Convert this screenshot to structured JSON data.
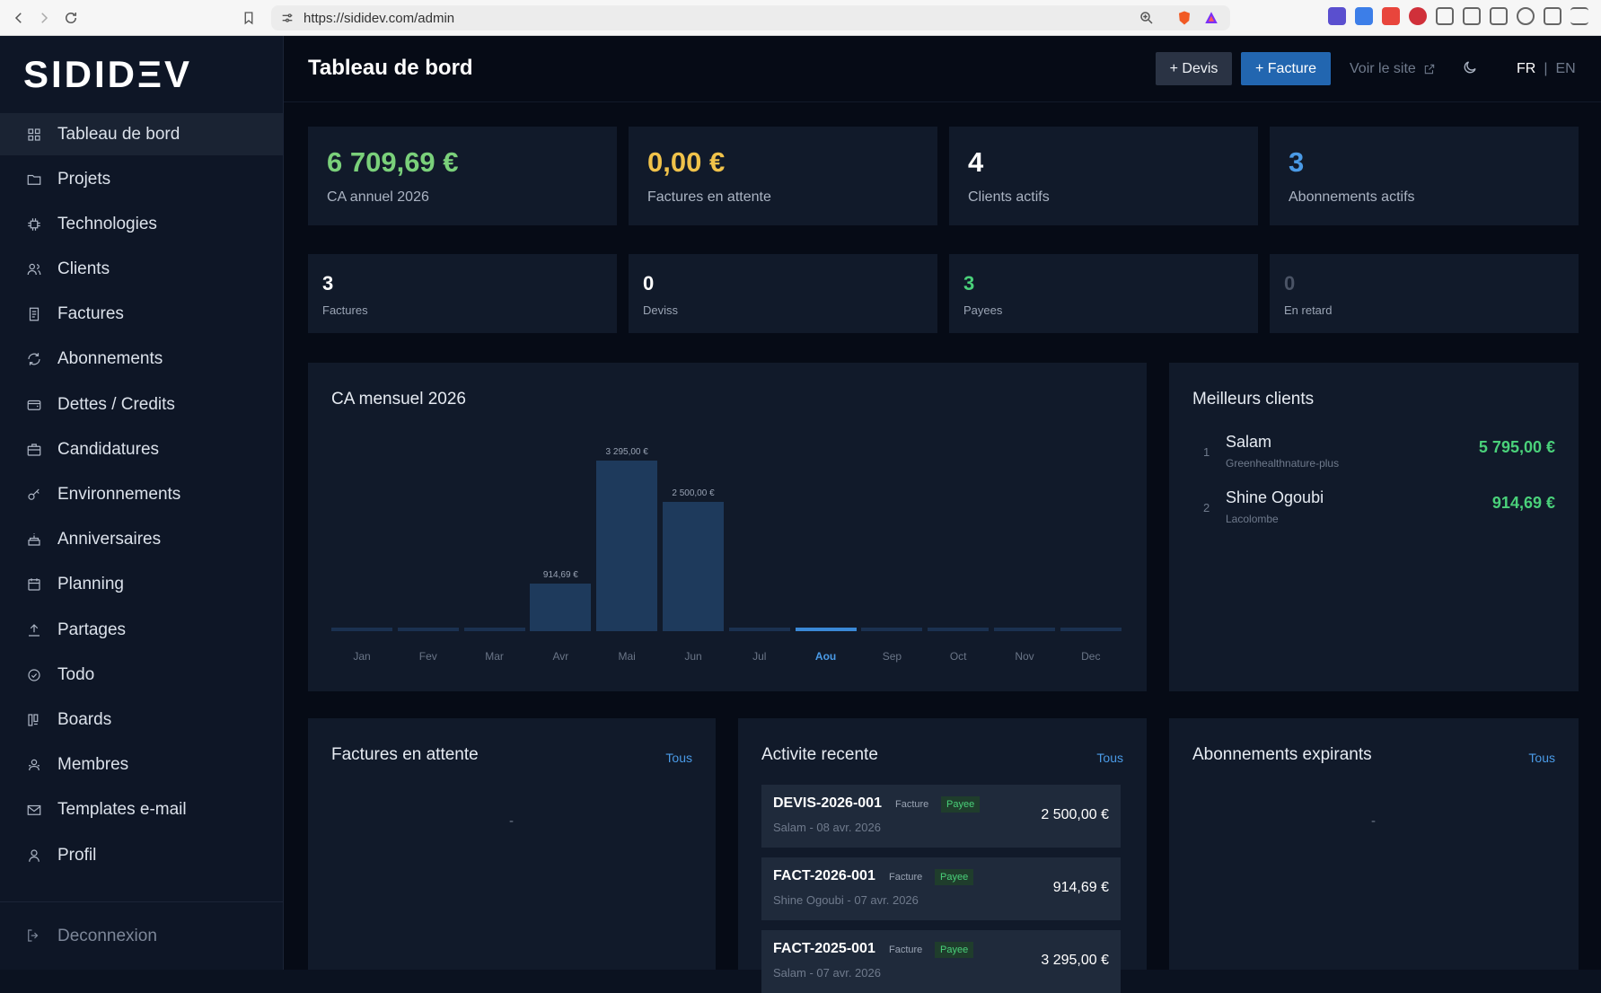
{
  "browser": {
    "url": "https://sididev.com/admin"
  },
  "sidebar": {
    "logo": "SIDIDΞV",
    "items": [
      {
        "label": "Tableau de bord",
        "icon": "dashboard-icon"
      },
      {
        "label": "Projets",
        "icon": "folder-icon"
      },
      {
        "label": "Technologies",
        "icon": "chip-icon"
      },
      {
        "label": "Clients",
        "icon": "users-icon"
      },
      {
        "label": "Factures",
        "icon": "receipt-icon"
      },
      {
        "label": "Abonnements",
        "icon": "refresh-icon"
      },
      {
        "label": "Dettes / Credits",
        "icon": "wallet-icon"
      },
      {
        "label": "Candidatures",
        "icon": "briefcase-icon"
      },
      {
        "label": "Environnements",
        "icon": "key-icon"
      },
      {
        "label": "Anniversaires",
        "icon": "cake-icon"
      },
      {
        "label": "Planning",
        "icon": "calendar-icon"
      },
      {
        "label": "Partages",
        "icon": "upload-icon"
      },
      {
        "label": "Todo",
        "icon": "check-circle-icon"
      },
      {
        "label": "Boards",
        "icon": "kanban-icon"
      },
      {
        "label": "Membres",
        "icon": "team-icon"
      },
      {
        "label": "Templates e-mail",
        "icon": "mail-icon"
      },
      {
        "label": "Profil",
        "icon": "user-icon"
      }
    ],
    "logout": "Deconnexion"
  },
  "header": {
    "title": "Tableau de bord",
    "devis_button": "+ Devis",
    "facture_button": "+ Facture",
    "voir_site": "Voir le site",
    "lang_fr": "FR",
    "lang_sep": "|",
    "lang_en": "EN"
  },
  "stats": [
    {
      "value": "6 709,69 €",
      "label": "CA annuel 2026",
      "color": "#7ad07a"
    },
    {
      "value": "0,00 €",
      "label": "Factures en attente",
      "color": "#f0c24a"
    },
    {
      "value": "4",
      "label": "Clients actifs",
      "color": "#ffffff"
    },
    {
      "value": "3",
      "label": "Abonnements actifs",
      "color": "#4a9ae6"
    }
  ],
  "small_stats": [
    {
      "value": "3",
      "label": "Factures",
      "color": "#ffffff"
    },
    {
      "value": "0",
      "label": "Deviss",
      "color": "#ffffff"
    },
    {
      "value": "3",
      "label": "Payees",
      "color": "#4ad17a"
    },
    {
      "value": "0",
      "label": "En retard",
      "color": "#4a5365"
    }
  ],
  "chart_data": {
    "type": "bar",
    "title": "CA mensuel 2026",
    "categories": [
      "Jan",
      "Fev",
      "Mar",
      "Avr",
      "Mai",
      "Jun",
      "Jul",
      "Aou",
      "Sep",
      "Oct",
      "Nov",
      "Dec"
    ],
    "values": [
      0,
      0,
      0,
      914.69,
      3295.0,
      2500.0,
      0,
      0,
      0,
      0,
      0,
      0
    ],
    "value_labels": [
      "",
      "",
      "",
      "914,69 €",
      "3 295,00 €",
      "2 500,00 €",
      "",
      "",
      "",
      "",
      "",
      ""
    ],
    "current_month": "Aou",
    "ylim": [
      0,
      3295
    ]
  },
  "best_clients": {
    "title": "Meilleurs clients",
    "items": [
      {
        "rank": "1",
        "name": "Salam",
        "company": "Greenhealthnature-plus",
        "amount": "5 795,00 €"
      },
      {
        "rank": "2",
        "name": "Shine Ogoubi",
        "company": "Lacolombe",
        "amount": "914,69 €"
      }
    ]
  },
  "pending_invoices": {
    "title": "Factures en attente",
    "link": "Tous",
    "empty": "-"
  },
  "recent_activity": {
    "title": "Activite recente",
    "link": "Tous",
    "items": [
      {
        "id": "DEVIS-2026-001",
        "type": "Facture",
        "status": "Payee",
        "sub": "Salam - 08 avr. 2026",
        "amount": "2 500,00 €"
      },
      {
        "id": "FACT-2026-001",
        "type": "Facture",
        "status": "Payee",
        "sub": "Shine Ogoubi - 07 avr. 2026",
        "amount": "914,69 €"
      },
      {
        "id": "FACT-2025-001",
        "type": "Facture",
        "status": "Payee",
        "sub": "Salam - 07 avr. 2026",
        "amount": "3 295,00 €"
      }
    ]
  },
  "expiring_subs": {
    "title": "Abonnements expirants",
    "link": "Tous",
    "empty": "-"
  }
}
